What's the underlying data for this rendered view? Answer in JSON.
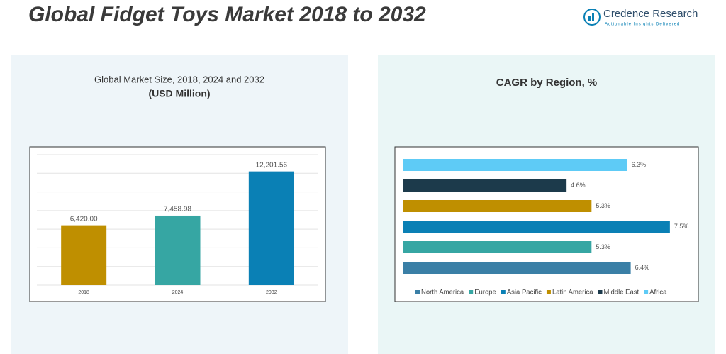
{
  "header": {
    "title": "Global Fidget Toys Market 2018 to 2032",
    "brand": "Credence Research",
    "tagline": "Actionable Insights Delivered"
  },
  "chart_data": [
    {
      "type": "bar",
      "title": "Global Market Size, 2018, 2024 and 2032",
      "subtitle": "(USD Million)",
      "categories": [
        "2018",
        "2024",
        "2032"
      ],
      "values": [
        6420.0,
        7458.98,
        12201.56
      ],
      "value_labels": [
        "6,420.00",
        "7,458.98",
        "12,201.56"
      ],
      "colors": [
        "#bf8f00",
        "#36a6a3",
        "#0a80b5"
      ],
      "ylim": [
        0,
        14000
      ],
      "yticks": [
        0,
        2000,
        4000,
        6000,
        8000,
        10000,
        12000,
        14000
      ],
      "grid": true
    },
    {
      "type": "hbar",
      "title": "CAGR by Region, %",
      "xlim": [
        0,
        8
      ],
      "legend": "bottom",
      "series": [
        {
          "name": "North America",
          "color": "#3a7fa6",
          "values": [
            6.4
          ],
          "value_labels": [
            "6.4%"
          ]
        },
        {
          "name": "Europe",
          "color": "#36a6a3",
          "values": [
            5.3
          ],
          "value_labels": [
            "5.3%"
          ]
        },
        {
          "name": "Asia Pacific",
          "color": "#0a80b5",
          "values": [
            7.5
          ],
          "value_labels": [
            "7.5%"
          ]
        },
        {
          "name": "Latin America",
          "color": "#bf8f00",
          "values": [
            5.3
          ],
          "value_labels": [
            "5.3%"
          ]
        },
        {
          "name": "Middle East",
          "color": "#1c3a4b",
          "values": [
            4.6
          ],
          "value_labels": [
            "4.6%"
          ]
        },
        {
          "name": "Africa",
          "color": "#5ecbf6",
          "values": [
            6.3
          ],
          "value_labels": [
            "6.3%"
          ]
        }
      ]
    }
  ]
}
